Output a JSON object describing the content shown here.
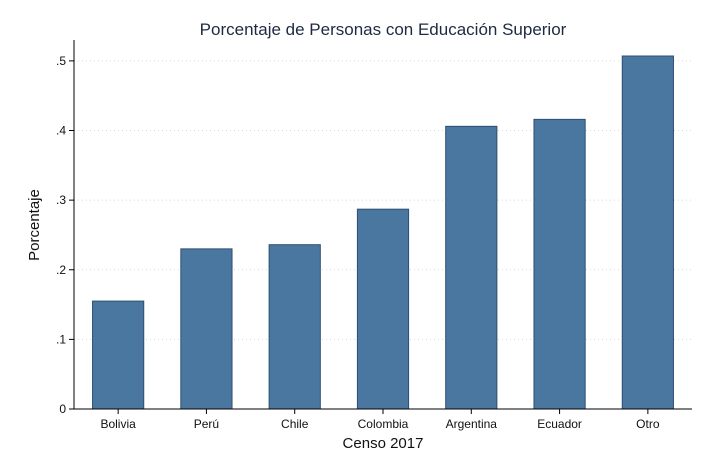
{
  "chart_data": {
    "type": "bar",
    "title": "Porcentaje de Personas con Educación Superior",
    "xlabel": "Censo 2017",
    "ylabel": "Porcentaje",
    "categories": [
      "Bolivia",
      "Perú",
      "Chile",
      "Colombia",
      "Argentina",
      "Ecuador",
      "Otro"
    ],
    "values": [
      0.155,
      0.23,
      0.236,
      0.287,
      0.406,
      0.416,
      0.507
    ],
    "ylim": [
      0,
      0.53
    ],
    "yticks": [
      0,
      0.1,
      0.2,
      0.3,
      0.4,
      0.5
    ],
    "ytick_labels": [
      "0",
      ".1",
      ".2",
      ".3",
      ".4",
      ".5"
    ],
    "grid": true,
    "bar_color": "#4a77a0"
  }
}
